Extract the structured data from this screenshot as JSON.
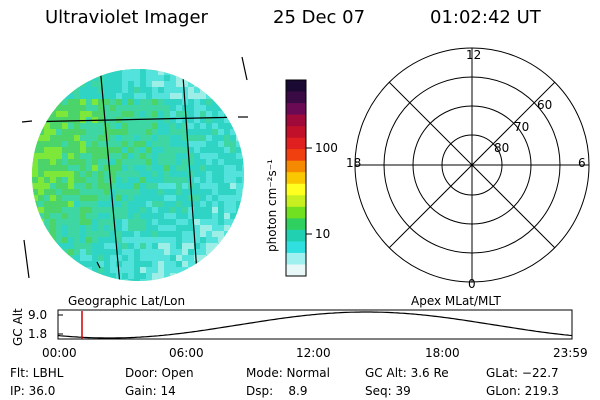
{
  "header": {
    "instrument": "Ultraviolet Imager",
    "date": "25 Dec 07",
    "time": "01:02:42 UT"
  },
  "colorbar": {
    "unit_label": "photon cm⁻²s⁻¹",
    "ticks": [
      "100",
      "10"
    ],
    "colors": [
      "#1a0a33",
      "#3a0a45",
      "#6a0a55",
      "#a00a3a",
      "#c0102a",
      "#e02020",
      "#f04010",
      "#f58a00",
      "#f9c800",
      "#ffff20",
      "#c8f020",
      "#70e020",
      "#30d060",
      "#20d0b0",
      "#30e0e0",
      "#a0f0f0",
      "#e8f8f8"
    ]
  },
  "image_panel": {
    "label": "Geographic Lat/Lon",
    "palette": [
      "#7ee83a",
      "#4ad46a",
      "#3ed6a2",
      "#2fd4c4",
      "#54e2dc",
      "#9eeee8"
    ]
  },
  "polar_panel": {
    "label": "Apex MLat/MLT",
    "mlt_labels": [
      "12",
      "18",
      "6",
      "0"
    ],
    "lat_labels": [
      "60",
      "70",
      "80"
    ]
  },
  "altitude_plot": {
    "ylabel": "GC Alt",
    "yticks": [
      "9.0",
      "1.8"
    ],
    "xticks": [
      "00:00",
      "06:00",
      "12:00",
      "18:00",
      "23:59"
    ],
    "marker_color": "#d00000"
  },
  "info": {
    "flt": "Flt: LBHL",
    "ip": "IP: 36.0",
    "door": "Door: Open",
    "gain": "Gain: 14",
    "mode": "Mode: Normal",
    "dsp": "Dsp:    8.9",
    "gcalt": "GC Alt: 3.6 Re",
    "seq": "Seq: 39",
    "glat": "GLat: −22.7",
    "glon": "GLon: 219.3"
  }
}
